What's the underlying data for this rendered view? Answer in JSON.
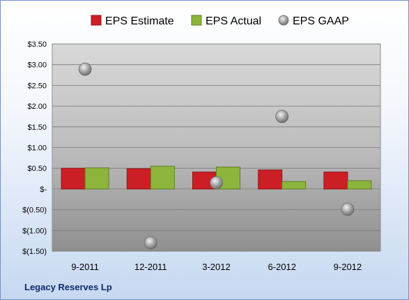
{
  "chart_data": {
    "type": "bar",
    "categories": [
      "9-2011",
      "12-2011",
      "3-2012",
      "6-2012",
      "9-2012"
    ],
    "series": [
      {
        "name": "EPS Estimate",
        "type": "bar",
        "color": "#cc1f25",
        "values": [
          0.5,
          0.49,
          0.41,
          0.46,
          0.41
        ]
      },
      {
        "name": "EPS Actual",
        "type": "bar",
        "color": "#8db53c",
        "values": [
          0.51,
          0.55,
          0.53,
          0.18,
          0.2
        ]
      },
      {
        "name": "EPS GAAP",
        "type": "scatter",
        "color": "#9a9a9a",
        "values": [
          2.89,
          -1.3,
          0.15,
          1.75,
          -0.49
        ]
      }
    ],
    "ylim": [
      -1.5,
      3.5
    ],
    "yticks": [
      3.5,
      3.0,
      2.5,
      2.0,
      1.5,
      1.0,
      0.5,
      0,
      -0.5,
      -1.0,
      -1.5
    ],
    "ytick_labels": [
      "$3.50",
      "$3.00",
      "$2.50",
      "$2.00",
      "$1.50",
      "$1.00",
      "$0.50",
      "$-",
      "$(0.50)",
      "$(1.00)",
      "$(1.50)"
    ],
    "grid": true,
    "legend_position": "top"
  },
  "company_name": "Legacy Reserves Lp"
}
